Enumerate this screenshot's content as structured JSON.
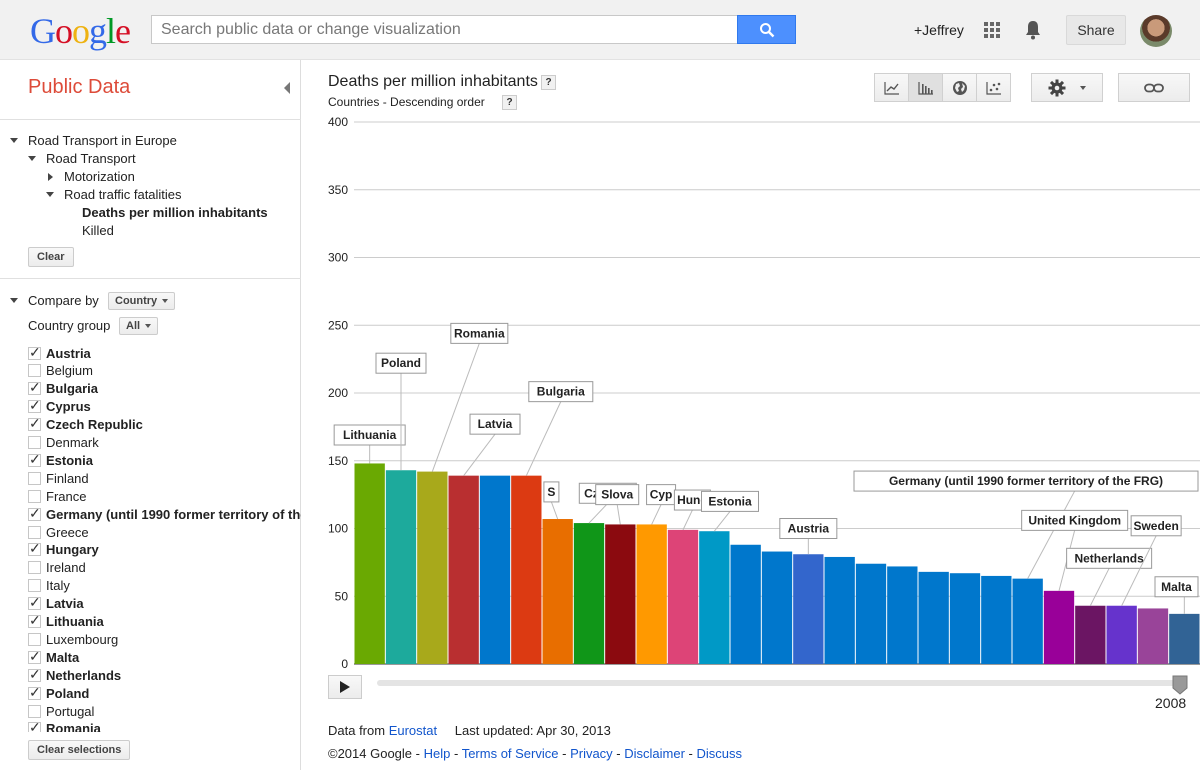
{
  "header": {
    "logo_letters": [
      "G",
      "o",
      "o",
      "g",
      "l",
      "e"
    ],
    "logo_colors": [
      "#3369e8",
      "#d50f25",
      "#eeb211",
      "#3369e8",
      "#009925",
      "#d50f25"
    ],
    "search_placeholder": "Search public data or change visualization",
    "user": "+Jeffrey",
    "share_label": "Share",
    "icons": [
      "search-icon",
      "apps-icon",
      "bell-icon",
      "avatar"
    ]
  },
  "sidebar": {
    "title": "Public Data",
    "tree": [
      {
        "label": "Road Transport in Europe",
        "marker": "down",
        "bold": false
      },
      {
        "label": "Road Transport",
        "marker": "down",
        "bold": false
      },
      {
        "label": "Motorization",
        "marker": "right",
        "bold": false
      },
      {
        "label": "Road traffic fatalities",
        "marker": "down",
        "bold": false
      },
      {
        "label": "Deaths per million inhabitants",
        "marker": "",
        "bold": true
      },
      {
        "label": "Killed",
        "marker": "",
        "bold": false
      }
    ],
    "clear_label": "Clear",
    "compare_by_label": "Compare by",
    "compare_by_value": "Country",
    "country_group_label": "Country group",
    "country_group_value": "All",
    "countries": [
      {
        "name": "Austria",
        "checked": true
      },
      {
        "name": "Belgium",
        "checked": false
      },
      {
        "name": "Bulgaria",
        "checked": true
      },
      {
        "name": "Cyprus",
        "checked": true
      },
      {
        "name": "Czech Republic",
        "checked": true
      },
      {
        "name": "Denmark",
        "checked": false
      },
      {
        "name": "Estonia",
        "checked": true
      },
      {
        "name": "Finland",
        "checked": false
      },
      {
        "name": "France",
        "checked": false
      },
      {
        "name": "Germany (until 1990 former territory of the FRG)",
        "checked": true
      },
      {
        "name": "Greece",
        "checked": false
      },
      {
        "name": "Hungary",
        "checked": true
      },
      {
        "name": "Ireland",
        "checked": false
      },
      {
        "name": "Italy",
        "checked": false
      },
      {
        "name": "Latvia",
        "checked": true
      },
      {
        "name": "Lithuania",
        "checked": true
      },
      {
        "name": "Luxembourg",
        "checked": false
      },
      {
        "name": "Malta",
        "checked": true
      },
      {
        "name": "Netherlands",
        "checked": true
      },
      {
        "name": "Poland",
        "checked": true
      },
      {
        "name": "Portugal",
        "checked": false
      },
      {
        "name": "Romania",
        "checked": true
      }
    ],
    "clear_selections_label": "Clear selections"
  },
  "main": {
    "title": "Deaths per million inhabitants",
    "subtitle": "Countries - Descending order",
    "help_mark": "?",
    "viz_buttons": [
      "line-chart-icon",
      "bar-chart-icon",
      "map-icon",
      "scatter-icon"
    ],
    "active_viz": 1,
    "year": "2008",
    "timeline_position": 1.0,
    "footer": {
      "data_from_label": "Data from",
      "data_source": "Eurostat",
      "last_updated": "Last updated: Apr 30, 2013",
      "copyright": "©2014 Google",
      "links": [
        "Help",
        "Terms of Service",
        "Privacy",
        "Disclaimer",
        "Discuss"
      ]
    }
  },
  "chart_data": {
    "type": "bar",
    "ylim": [
      0,
      400
    ],
    "yticks": [
      0,
      50,
      100,
      150,
      200,
      250,
      300,
      350,
      400
    ],
    "grid": true,
    "bars": [
      {
        "value": 148,
        "color": "#6aa902",
        "label": "Lithuania"
      },
      {
        "value": 143,
        "color": "#1daa9c",
        "label": "Poland"
      },
      {
        "value": 142,
        "color": "#a8a91b",
        "label": "Romania"
      },
      {
        "value": 139,
        "color": "#b92f30",
        "label": "Latvia"
      },
      {
        "value": 139,
        "color": "#0077cc",
        "label": ""
      },
      {
        "value": 139,
        "color": "#dc3a12",
        "label": "Bulgaria"
      },
      {
        "value": 107,
        "color": "#e86e00",
        "label": "S"
      },
      {
        "value": 104,
        "color": "#109618",
        "label": "Czech R"
      },
      {
        "value": 103,
        "color": "#8b0a0f",
        "label": "Slova"
      },
      {
        "value": 103,
        "color": "#ff9900",
        "label": "Cyp"
      },
      {
        "value": 99,
        "color": "#dd4477",
        "label": "Hung"
      },
      {
        "value": 98,
        "color": "#0099c6",
        "label": "Estonia"
      },
      {
        "value": 88,
        "color": "#0077cc",
        "label": ""
      },
      {
        "value": 83,
        "color": "#0077cc",
        "label": ""
      },
      {
        "value": 81,
        "color": "#3366cc",
        "label": "Austria"
      },
      {
        "value": 79,
        "color": "#0077cc",
        "label": ""
      },
      {
        "value": 74,
        "color": "#0077cc",
        "label": ""
      },
      {
        "value": 72,
        "color": "#0077cc",
        "label": ""
      },
      {
        "value": 68,
        "color": "#0077cc",
        "label": ""
      },
      {
        "value": 67,
        "color": "#0077cc",
        "label": ""
      },
      {
        "value": 65,
        "color": "#0077cc",
        "label": ""
      },
      {
        "value": 63,
        "color": "#0077cc",
        "label": "Germany (until 1990 former territory of the FRG)"
      },
      {
        "value": 54,
        "color": "#990099",
        "label": "United Kingdom"
      },
      {
        "value": 43,
        "color": "#6b1563",
        "label": "Netherlands"
      },
      {
        "value": 43,
        "color": "#6633cc",
        "label": "Sweden"
      },
      {
        "value": 41,
        "color": "#994499",
        "label": ""
      },
      {
        "value": 37,
        "color": "#316395",
        "label": "Malta"
      }
    ]
  }
}
